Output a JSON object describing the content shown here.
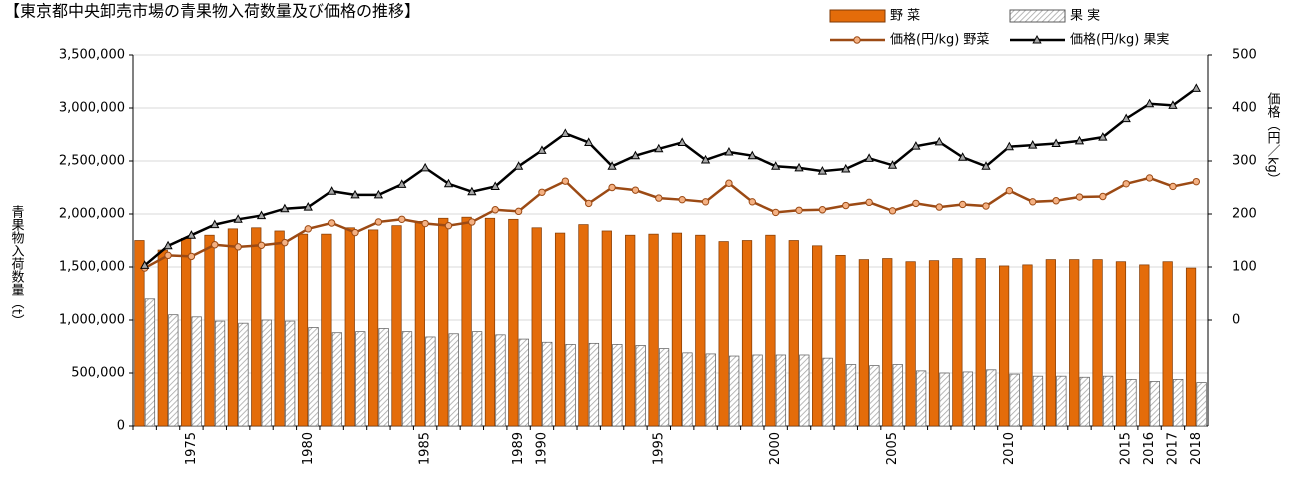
{
  "chart_data": {
    "type": "bar-line",
    "title": "【東京都中央卸売市場の青果物入荷数量及び価格の推移】",
    "y_label": "青果物入荷数量（t）",
    "y2_label": "価格（円／kg）",
    "categories": [
      null,
      null,
      "1975",
      null,
      null,
      null,
      null,
      "1980",
      null,
      null,
      null,
      null,
      "1985",
      null,
      null,
      null,
      "1989",
      "1990",
      null,
      null,
      null,
      null,
      "1995",
      null,
      null,
      null,
      null,
      "2000",
      null,
      null,
      null,
      null,
      "2005",
      null,
      null,
      null,
      null,
      "2010",
      null,
      null,
      null,
      null,
      "2015",
      "2016",
      "2017",
      "2018"
    ],
    "ylim": [
      0,
      3500000
    ],
    "yticks": [
      0,
      {
        "value": 500000,
        "label": "500,000"
      },
      {
        "value": 1000000,
        "label": "1,000,000"
      },
      {
        "value": 1500000,
        "label": "1,500,000"
      },
      {
        "value": 2000000,
        "label": "2,000,000"
      },
      {
        "value": 2500000,
        "label": "2,500,000"
      },
      {
        "value": 3000000,
        "label": "3,000,000"
      },
      {
        "value": 3500000,
        "label": "3,500,000"
      }
    ],
    "y2lim": [
      -200,
      500
    ],
    "y2ticks": [
      0,
      100,
      200,
      300,
      400,
      500
    ],
    "grid": true,
    "series": [
      {
        "name": "野 菜",
        "kind": "bar",
        "color": "#e46c0a",
        "values": [
          1750000,
          1660000,
          1770000,
          1800000,
          1860000,
          1870000,
          1840000,
          1810000,
          1810000,
          1870000,
          1850000,
          1890000,
          1930000,
          1960000,
          1970000,
          1960000,
          1950000,
          1870000,
          1820000,
          1900000,
          1840000,
          1800000,
          1810000,
          1820000,
          1800000,
          1740000,
          1750000,
          1800000,
          1750000,
          1700000,
          1610000,
          1570000,
          1580000,
          1550000,
          1560000,
          1580000,
          1580000,
          1510000,
          1520000,
          1570000,
          1570000,
          1570000,
          1550000,
          1520000,
          1550000,
          1490000
        ]
      },
      {
        "name": "果 実",
        "kind": "hatched-bar",
        "color": "#a6a6a6",
        "values": [
          1200000,
          1050000,
          1030000,
          990000,
          970000,
          1000000,
          990000,
          930000,
          880000,
          890000,
          920000,
          890000,
          840000,
          870000,
          890000,
          860000,
          820000,
          790000,
          770000,
          780000,
          770000,
          760000,
          730000,
          690000,
          680000,
          660000,
          670000,
          670000,
          670000,
          640000,
          580000,
          570000,
          580000,
          520000,
          500000,
          510000,
          530000,
          490000,
          470000,
          470000,
          460000,
          470000,
          440000,
          420000,
          440000,
          410000
        ]
      },
      {
        "name": "価格(円/kg) 野菜",
        "kind": "line",
        "marker": "circle",
        "axis": "y2",
        "color": "#9c4a14",
        "marker_color": "#f4b183",
        "values": [
          98,
          122,
          120,
          142,
          138,
          141,
          146,
          172,
          183,
          165,
          185,
          190,
          182,
          178,
          185,
          208,
          205,
          241,
          262,
          220,
          250,
          245,
          230,
          227,
          223,
          258,
          223,
          203,
          207,
          208,
          216,
          222,
          206,
          220,
          213,
          218,
          215,
          244,
          223,
          225,
          232,
          233,
          257,
          268,
          252,
          261
        ]
      },
      {
        "name": "価格(円/kg) 果実",
        "kind": "line",
        "marker": "triangle",
        "axis": "y2",
        "color": "#000000",
        "marker_color": "#a6a6a6",
        "values": [
          103,
          140,
          160,
          180,
          190,
          197,
          210,
          213,
          243,
          236,
          236,
          256,
          287,
          257,
          242,
          252,
          290,
          320,
          352,
          335,
          290,
          310,
          323,
          335,
          302,
          317,
          310,
          290,
          287,
          281,
          285,
          305,
          292,
          328,
          336,
          307,
          290,
          327,
          330,
          333,
          338,
          345,
          380,
          408,
          405,
          437
        ]
      }
    ]
  }
}
